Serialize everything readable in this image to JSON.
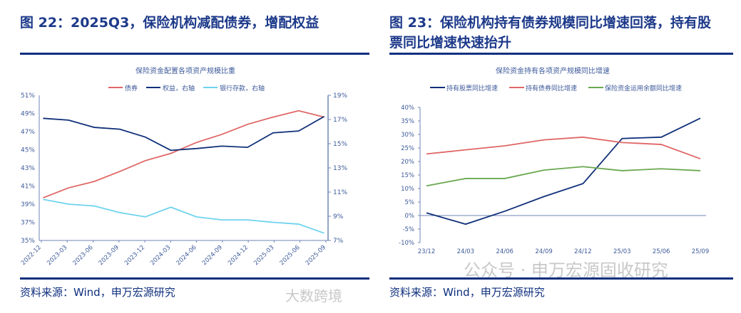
{
  "left": {
    "heading": "图 22：2025Q3，保险机构减配债券，增配权益",
    "source": "资料来源：Wind，申万宏源研究"
  },
  "right": {
    "heading": "图 23：保险机构持有债券规模同比增速回落，持有股票同比增速快速抬升",
    "source": "资料来源：Wind，申万宏源研究"
  },
  "watermarks": {
    "right": "公众号 · 申万宏源固收研究",
    "left": "大数跨境"
  },
  "chart_data": [
    {
      "type": "line",
      "title": "保险资金配置各项资产规模比重",
      "categories": [
        "2022-12",
        "2023-03",
        "2023-06",
        "2023-09",
        "2023-12",
        "2024-03",
        "2024-06",
        "2024-09",
        "2024-12",
        "2025-03",
        "2025-06",
        "2025-09"
      ],
      "ylim": [
        35,
        51
      ],
      "y2lim": [
        7,
        19
      ],
      "yticks": [
        "35%",
        "37%",
        "39%",
        "41%",
        "43%",
        "45%",
        "47%",
        "49%",
        "51%"
      ],
      "y2ticks": [
        "7%",
        "9%",
        "11%",
        "13%",
        "15%",
        "17%",
        "19%"
      ],
      "legend": "top",
      "grid": false,
      "series": [
        {
          "name": "债券",
          "axis": "left",
          "color": "#e06666",
          "values": [
            39.7,
            40.8,
            41.5,
            42.6,
            43.8,
            44.6,
            45.8,
            46.7,
            47.8,
            48.6,
            49.3,
            48.6
          ]
        },
        {
          "name": "权益，右轴",
          "axis": "right",
          "color": "#10307a",
          "values": [
            17.1,
            16.95,
            16.35,
            16.2,
            15.55,
            14.45,
            14.6,
            14.8,
            14.7,
            15.9,
            16.05,
            17.25
          ]
        },
        {
          "name": "银行存款，右轴",
          "axis": "right",
          "color": "#6fd3ee",
          "values": [
            10.4,
            10.0,
            9.85,
            9.3,
            8.95,
            9.75,
            8.95,
            8.7,
            8.7,
            8.5,
            8.35,
            7.6
          ]
        }
      ]
    },
    {
      "type": "line",
      "title": "保险资金持有各项资产规模同比增速",
      "categories": [
        "23/12",
        "24/03",
        "24/06",
        "24/09",
        "24/12",
        "25/03",
        "25/06",
        "25/09"
      ],
      "ylim": [
        -10,
        40
      ],
      "yticks": [
        "-10%",
        "-5%",
        "0%",
        "5%",
        "10%",
        "15%",
        "20%",
        "25%",
        "30%",
        "35%",
        "40%"
      ],
      "legend": "top",
      "grid": false,
      "series": [
        {
          "name": "持有股票同比增速",
          "color": "#10307a",
          "values": [
            1,
            -3.2,
            1.6,
            7,
            11.8,
            28.5,
            29,
            36
          ]
        },
        {
          "name": "持有债券同比增速",
          "color": "#e06666",
          "values": [
            22.8,
            24.3,
            25.8,
            28,
            29,
            27,
            26.3,
            21
          ]
        },
        {
          "name": "保险资金运用余额同比增速",
          "color": "#6aa84f",
          "values": [
            11,
            13.7,
            13.7,
            16.8,
            18.1,
            16.6,
            17.3,
            16.6
          ]
        }
      ]
    }
  ]
}
